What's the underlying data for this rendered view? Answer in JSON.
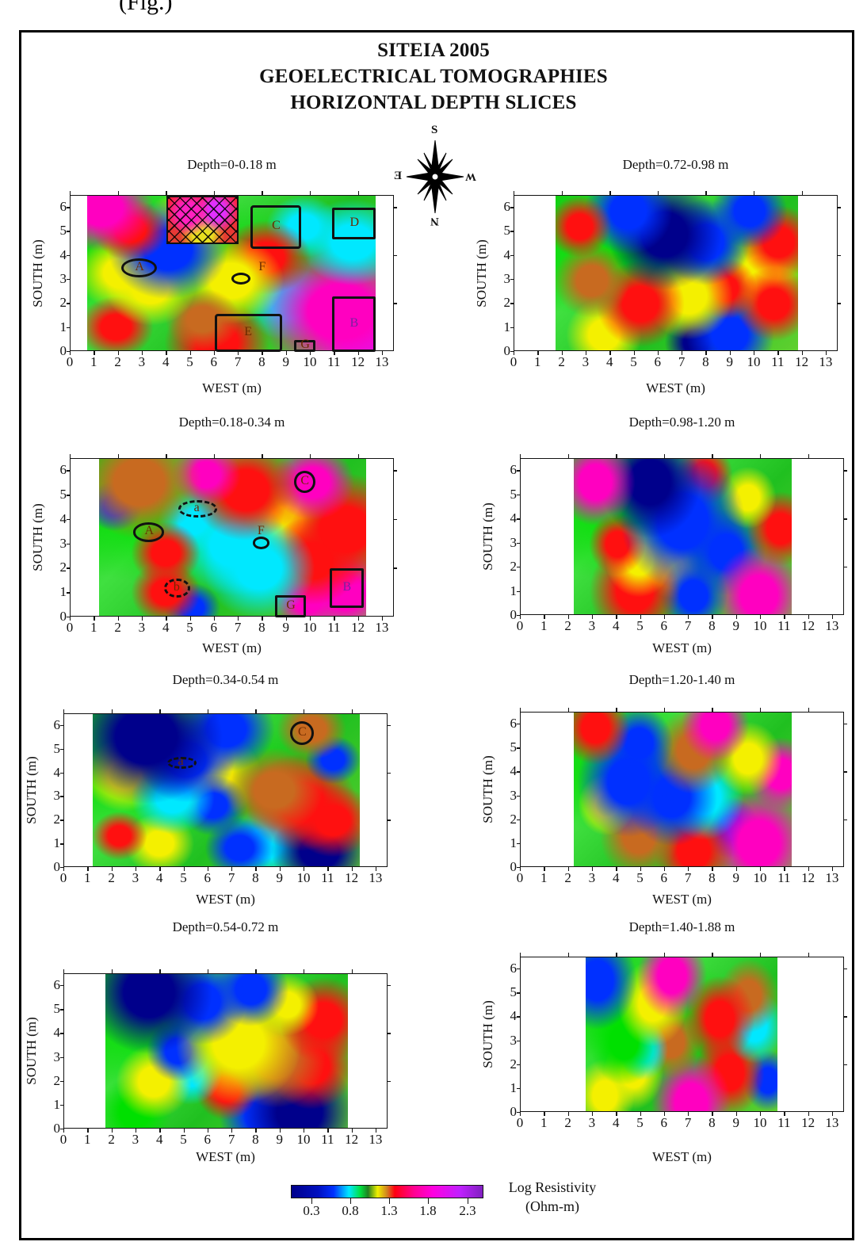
{
  "header": {
    "fragment": "(Fig.)",
    "title_line1": "SITEIA 2005",
    "title_line2": "GEOELECTRICAL TOMOGRAPHIES",
    "title_line3": "HORIZONTAL DEPTH SLICES"
  },
  "compass": {
    "top": "S",
    "bottom": "N",
    "left": "E",
    "right": "W"
  },
  "axes": {
    "xlabel": "WEST (m)",
    "ylabel": "SOUTH (m)",
    "x_ticks": [
      "0",
      "1",
      "2",
      "3",
      "4",
      "5",
      "6",
      "7",
      "8",
      "9",
      "10",
      "11",
      "12",
      "13"
    ],
    "y_ticks": [
      "0",
      "1",
      "2",
      "3",
      "4",
      "5",
      "6"
    ]
  },
  "colorbar": {
    "label_line1": "Log Resistivity",
    "label_line2": "(Ohm-m)",
    "ticks": [
      "0.3",
      "0.8",
      "1.3",
      "1.8",
      "2.3"
    ],
    "colors": [
      "#00008b",
      "#0020ff",
      "#00e0ff",
      "#00e000",
      "#208020",
      "#ffff00",
      "#c06020",
      "#ff0000",
      "#ff00c0",
      "#c000ff",
      "#8020c0"
    ]
  },
  "chart_data": {
    "type": "heatmap",
    "title": "SITEIA 2005 GEOELECTRICAL TOMOGRAPHIES HORIZONTAL DEPTH SLICES",
    "xlabel": "WEST (m)",
    "ylabel": "SOUTH (m)",
    "xlim": [
      0,
      13.5
    ],
    "ylim": [
      0,
      6.5
    ],
    "colorbar": {
      "label": "Log Resistivity (Ohm-m)",
      "ticks": [
        0.3,
        0.8,
        1.3,
        1.8,
        2.3
      ],
      "range": [
        0.05,
        2.5
      ]
    },
    "panels": [
      {
        "title": "Depth=0-0.18 m",
        "data_x_range": [
          0.7,
          12.7
        ],
        "anomalies": [
          "A",
          "B",
          "C",
          "D",
          "E",
          "F",
          "G"
        ],
        "hatched_region": {
          "x": [
            4,
            7
          ],
          "y": [
            4.5,
            6.5
          ]
        }
      },
      {
        "title": "Depth=0.18-0.34 m",
        "data_x_range": [
          1.2,
          12.3
        ],
        "anomalies": [
          "A",
          "a",
          "b",
          "B",
          "C",
          "F",
          "G"
        ]
      },
      {
        "title": "Depth=0.34-0.54 m",
        "data_x_range": [
          1.2,
          12.3
        ],
        "anomalies": [
          "a",
          "C"
        ]
      },
      {
        "title": "Depth=0.54-0.72 m",
        "data_x_range": [
          1.7,
          11.8
        ],
        "anomalies": []
      },
      {
        "title": "Depth=0.72-0.98 m",
        "data_x_range": [
          1.7,
          11.8
        ],
        "anomalies": []
      },
      {
        "title": "Depth=0.98-1.20 m",
        "data_x_range": [
          2.2,
          11.3
        ],
        "anomalies": []
      },
      {
        "title": "Depth=1.20-1.40 m",
        "data_x_range": [
          2.2,
          11.3
        ],
        "anomalies": []
      },
      {
        "title": "Depth=1.40-1.88 m",
        "data_x_range": [
          2.7,
          10.7
        ],
        "anomalies": []
      }
    ]
  },
  "panels": [
    {
      "title": "Depth=0-0.18 m"
    },
    {
      "title": "Depth=0.18-0.34 m"
    },
    {
      "title": "Depth=0.34-0.54 m"
    },
    {
      "title": "Depth=0.54-0.72 m"
    },
    {
      "title": "Depth=0.72-0.98 m"
    },
    {
      "title": "Depth=0.98-1.20 m"
    },
    {
      "title": "Depth=1.20-1.40 m"
    },
    {
      "title": "Depth=1.40-1.88 m"
    }
  ],
  "anomaly_labels": {
    "A": "A",
    "B": "B",
    "C": "C",
    "D": "D",
    "E": "E",
    "F": "F",
    "G": "G",
    "a": "a",
    "b": "b"
  }
}
